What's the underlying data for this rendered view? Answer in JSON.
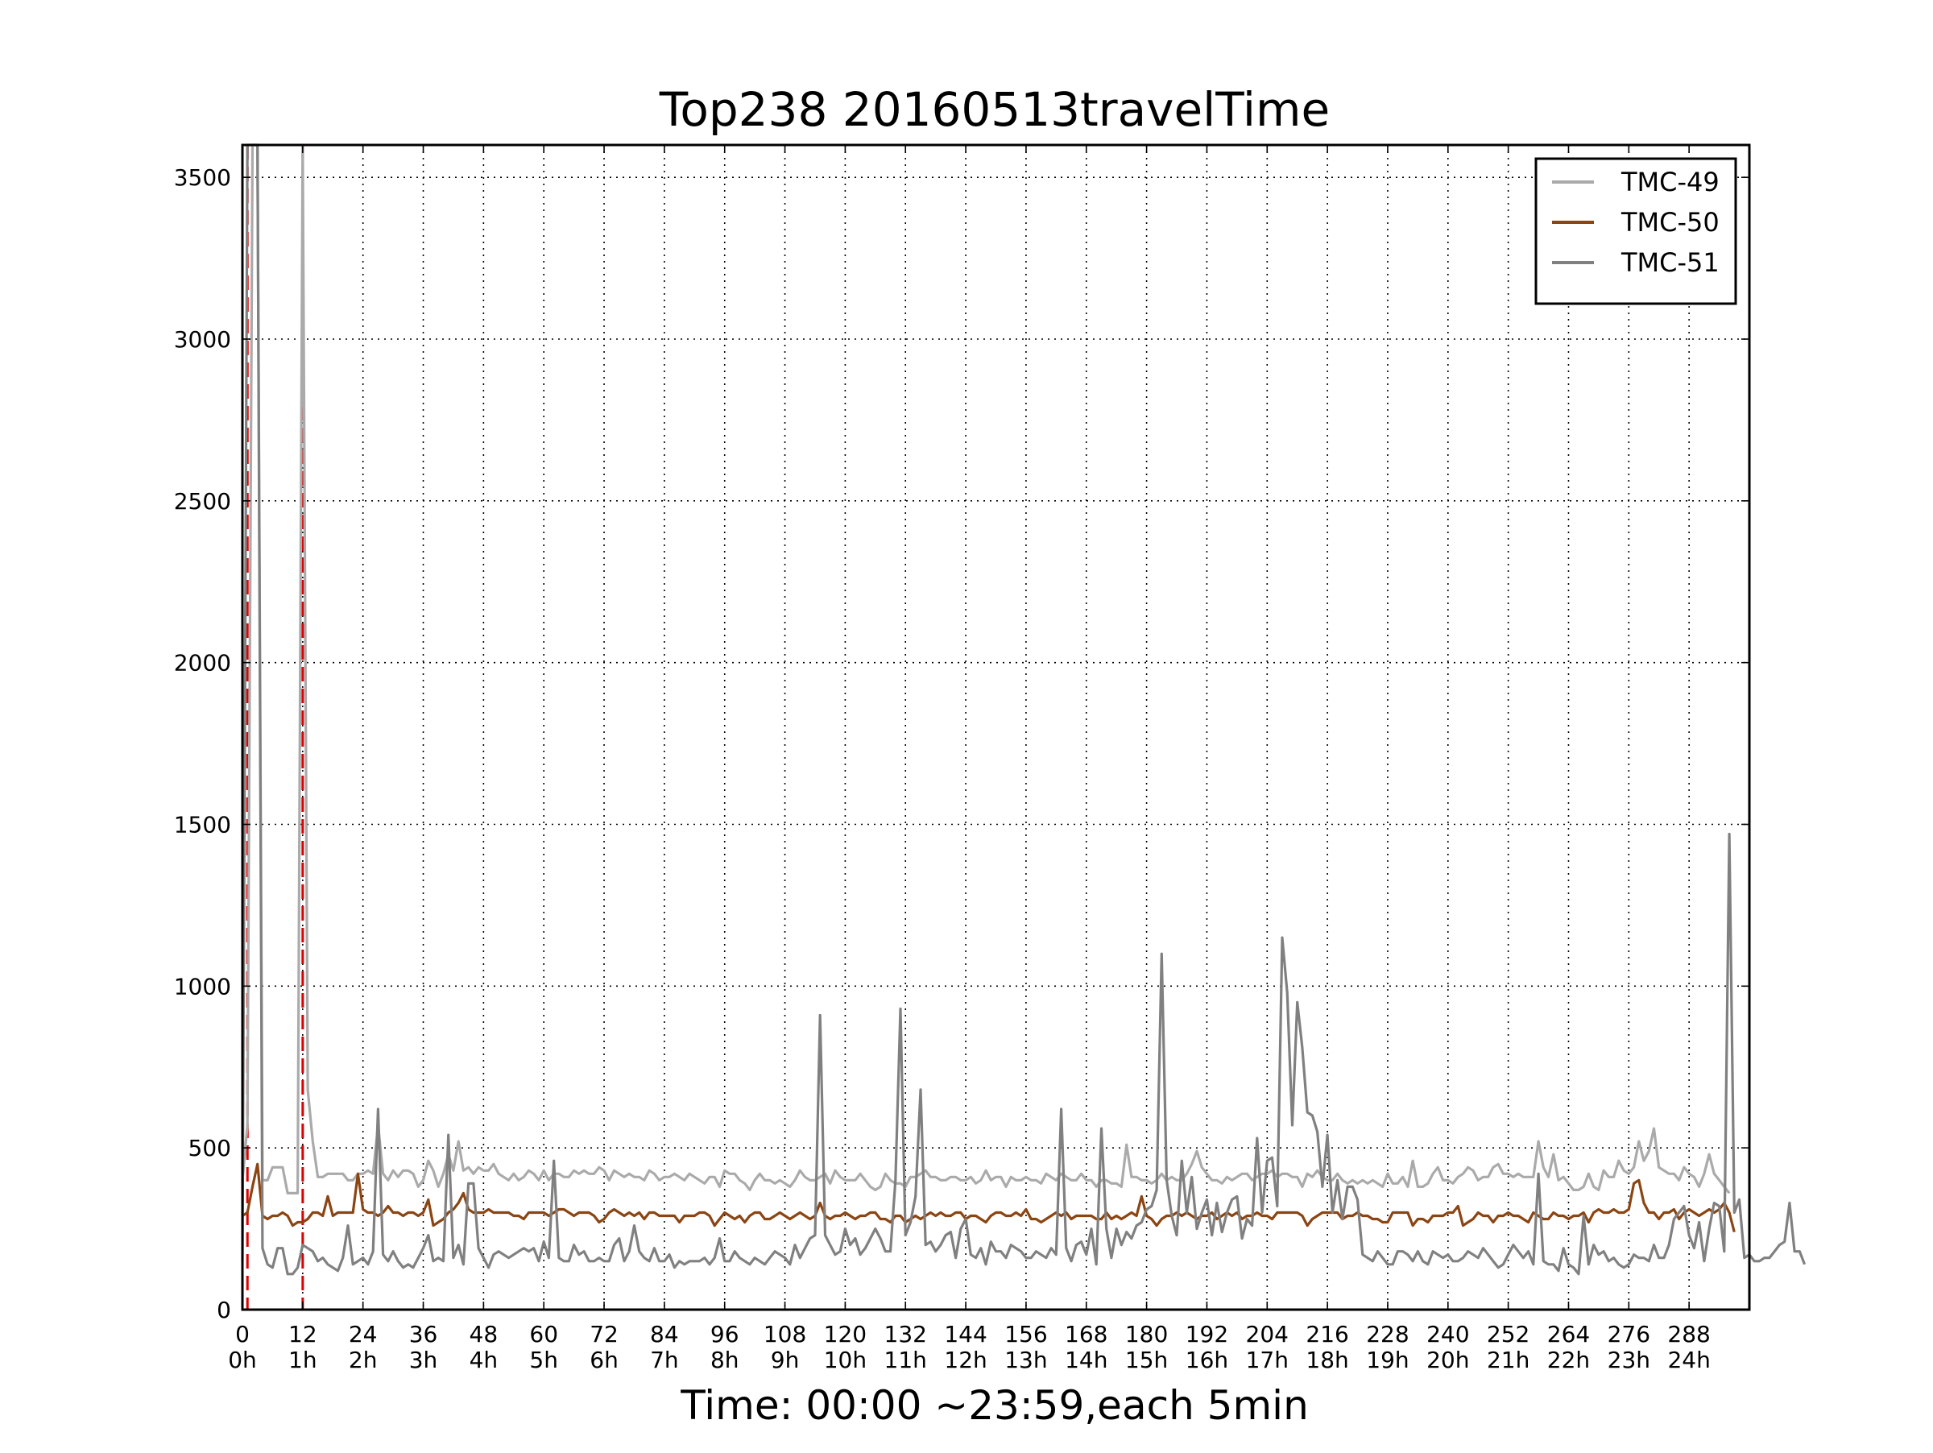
{
  "chart_data": {
    "type": "line",
    "title": "Top238 20160513travelTime",
    "xlabel": "Time: 00:00 ~23:59,each 5min",
    "ylabel": "",
    "xlim": [
      0,
      300
    ],
    "ylim": [
      0,
      3600
    ],
    "x_ticks": [
      0,
      12,
      24,
      36,
      48,
      60,
      72,
      84,
      96,
      108,
      120,
      132,
      144,
      156,
      168,
      180,
      192,
      204,
      216,
      228,
      240,
      252,
      264,
      276,
      288
    ],
    "x_tick_labels": [
      "0",
      "12",
      "24",
      "36",
      "48",
      "60",
      "72",
      "84",
      "96",
      "108",
      "120",
      "132",
      "144",
      "156",
      "168",
      "180",
      "192",
      "204",
      "216",
      "228",
      "240",
      "252",
      "264",
      "276",
      "288"
    ],
    "x_tick_sublabels": [
      "0h",
      "1h",
      "2h",
      "3h",
      "4h",
      "5h",
      "6h",
      "7h",
      "8h",
      "9h",
      "10h",
      "11h",
      "12h",
      "13h",
      "14h",
      "15h",
      "16h",
      "17h",
      "18h",
      "19h",
      "20h",
      "21h",
      "22h",
      "23h",
      "24h"
    ],
    "y_ticks": [
      0,
      500,
      1000,
      1500,
      2000,
      2500,
      3000,
      3500
    ],
    "y_tick_labels": [
      "0",
      "500",
      "1000",
      "1500",
      "2000",
      "2500",
      "3000",
      "3500"
    ],
    "grid": true,
    "legend_position": "top-right",
    "vertical_markers": [
      {
        "x": 1,
        "color": "#dd0000",
        "style": "dashed"
      },
      {
        "x": 12,
        "color": "#dd0000",
        "style": "dashed"
      }
    ],
    "series": [
      {
        "name": "TMC-49",
        "color": "#aaaaaa",
        "values": [
          400,
          570,
          3600,
          3600,
          400,
          400,
          440,
          440,
          440,
          360,
          360,
          360,
          3600,
          680,
          520,
          410,
          410,
          420,
          420,
          420,
          420,
          400,
          400,
          420,
          420,
          430,
          420,
          570,
          420,
          400,
          430,
          410,
          430,
          430,
          420,
          380,
          400,
          460,
          430,
          380,
          420,
          480,
          430,
          520,
          430,
          440,
          420,
          440,
          430,
          430,
          450,
          420,
          410,
          400,
          420,
          400,
          410,
          430,
          420,
          400,
          430,
          400,
          420,
          420,
          410,
          410,
          430,
          420,
          430,
          420,
          420,
          440,
          430,
          400,
          430,
          420,
          410,
          420,
          410,
          410,
          400,
          430,
          420,
          400,
          410,
          410,
          420,
          410,
          400,
          420,
          410,
          400,
          390,
          410,
          410,
          380,
          430,
          420,
          420,
          400,
          390,
          370,
          400,
          420,
          400,
          400,
          390,
          400,
          390,
          380,
          400,
          430,
          410,
          400,
          400,
          410,
          420,
          390,
          430,
          410,
          400,
          400,
          400,
          420,
          400,
          380,
          370,
          380,
          420,
          400,
          390,
          390,
          380,
          410,
          410,
          420,
          430,
          410,
          410,
          400,
          400,
          410,
          410,
          400,
          400,
          410,
          390,
          400,
          430,
          400,
          410,
          410,
          380,
          410,
          400,
          400,
          410,
          400,
          400,
          390,
          420,
          410,
          400,
          420,
          410,
          400,
          400,
          420,
          400,
          400,
          380,
          400,
          400,
          390,
          390,
          380,
          510,
          410,
          410,
          400,
          400,
          390,
          400,
          420,
          400,
          410,
          400,
          400,
          420,
          450,
          490,
          440,
          420,
          400,
          400,
          390,
          410,
          400,
          410,
          420,
          420,
          400,
          410,
          420,
          420,
          430,
          410,
          420,
          420,
          410,
          410,
          380,
          420,
          410,
          430,
          410,
          400,
          400,
          420,
          400,
          390,
          400,
          390,
          400,
          390,
          400,
          390,
          380,
          420,
          390,
          390,
          410,
          380,
          460,
          380,
          380,
          390,
          420,
          440,
          400,
          400,
          390,
          410,
          420,
          440,
          430,
          400,
          410,
          410,
          440,
          450,
          420,
          420,
          410,
          420,
          410,
          410,
          410,
          520,
          440,
          410,
          480,
          400,
          410,
          390,
          370,
          370,
          380,
          420,
          380,
          370,
          430,
          410,
          410,
          460,
          430,
          420,
          440,
          520,
          460,
          490,
          560,
          440,
          430,
          420,
          420,
          400,
          440,
          420,
          410,
          380,
          420,
          480,
          420,
          400,
          380,
          360
        ],
        "points": [
          {
            "x": 286,
            "y": 360
          }
        ]
      },
      {
        "name": "TMC-50",
        "color": "#8b4513",
        "values": [
          290,
          300,
          380,
          450,
          290,
          280,
          290,
          290,
          300,
          290,
          260,
          270,
          270,
          280,
          300,
          300,
          290,
          350,
          290,
          300,
          300,
          300,
          300,
          420,
          310,
          300,
          300,
          290,
          300,
          320,
          300,
          300,
          290,
          300,
          300,
          290,
          300,
          340,
          260,
          270,
          280,
          300,
          310,
          330,
          360,
          310,
          300,
          300,
          300,
          310,
          300,
          300,
          300,
          300,
          290,
          290,
          280,
          300,
          300,
          300,
          300,
          290,
          300,
          310,
          310,
          300,
          290,
          300,
          300,
          300,
          290,
          270,
          280,
          300,
          310,
          300,
          290,
          300,
          290,
          300,
          280,
          300,
          300,
          290,
          290,
          290,
          290,
          270,
          290,
          290,
          290,
          300,
          300,
          290,
          260,
          280,
          300,
          290,
          280,
          290,
          270,
          290,
          300,
          300,
          280,
          280,
          290,
          300,
          290,
          280,
          290,
          300,
          290,
          280,
          290,
          330,
          290,
          280,
          290,
          290,
          300,
          290,
          280,
          290,
          290,
          300,
          300,
          280,
          280,
          270,
          290,
          290,
          270,
          280,
          290,
          280,
          290,
          300,
          290,
          300,
          290,
          290,
          300,
          300,
          280,
          290,
          290,
          280,
          270,
          290,
          300,
          300,
          290,
          290,
          300,
          290,
          310,
          280,
          280,
          270,
          280,
          290,
          300,
          290,
          300,
          280,
          290,
          290,
          290,
          290,
          280,
          280,
          300,
          280,
          290,
          280,
          290,
          300,
          290,
          350,
          290,
          280,
          260,
          280,
          290,
          290,
          300,
          290,
          300,
          290,
          280,
          290,
          290,
          300,
          280,
          290,
          300,
          290,
          300,
          280,
          290,
          290,
          300,
          290,
          290,
          280,
          300,
          300,
          300,
          300,
          300,
          290,
          260,
          280,
          290,
          300,
          300,
          300,
          300,
          280,
          290,
          290,
          300,
          290,
          290,
          280,
          280,
          270,
          270,
          300,
          300,
          300,
          300,
          260,
          280,
          280,
          270,
          290,
          290,
          290,
          300,
          300,
          320,
          260,
          270,
          280,
          300,
          290,
          290,
          270,
          290,
          290,
          300,
          290,
          290,
          280,
          270,
          300,
          290,
          280,
          280,
          300,
          290,
          290,
          280,
          290,
          290,
          300,
          270,
          300,
          310,
          300,
          300,
          310,
          300,
          300,
          310,
          390,
          400,
          330,
          300,
          300,
          280,
          300,
          300,
          310,
          280,
          300,
          310,
          300,
          290,
          300,
          310,
          300,
          310,
          330,
          300,
          240
        ]
      },
      {
        "name": "TMC-51",
        "color": "#808080",
        "values": [
          150,
          3600,
          3600,
          3600,
          190,
          140,
          130,
          190,
          190,
          110,
          110,
          130,
          200,
          190,
          180,
          150,
          160,
          140,
          130,
          120,
          160,
          260,
          140,
          150,
          160,
          140,
          180,
          620,
          170,
          150,
          180,
          150,
          130,
          140,
          130,
          160,
          190,
          230,
          150,
          160,
          150,
          540,
          160,
          200,
          140,
          390,
          390,
          190,
          160,
          130,
          170,
          180,
          170,
          160,
          170,
          180,
          190,
          180,
          190,
          150,
          210,
          160,
          460,
          160,
          150,
          150,
          200,
          170,
          180,
          150,
          150,
          160,
          150,
          150,
          200,
          220,
          150,
          180,
          260,
          180,
          160,
          150,
          190,
          150,
          150,
          170,
          130,
          150,
          140,
          150,
          150,
          150,
          160,
          140,
          160,
          220,
          150,
          150,
          180,
          160,
          150,
          140,
          160,
          150,
          140,
          160,
          180,
          170,
          160,
          140,
          200,
          160,
          190,
          220,
          230,
          910,
          230,
          200,
          170,
          180,
          250,
          200,
          220,
          170,
          190,
          220,
          250,
          220,
          180,
          180,
          400,
          930,
          230,
          270,
          350,
          680,
          200,
          210,
          180,
          200,
          230,
          240,
          160,
          250,
          280,
          170,
          160,
          190,
          140,
          210,
          180,
          180,
          160,
          200,
          190,
          180,
          160,
          160,
          180,
          170,
          160,
          190,
          170,
          620,
          190,
          150,
          200,
          210,
          170,
          250,
          140,
          560,
          250,
          160,
          250,
          200,
          240,
          220,
          260,
          270,
          310,
          320,
          370,
          1100,
          400,
          290,
          230,
          460,
          300,
          410,
          250,
          300,
          340,
          230,
          330,
          240,
          300,
          340,
          350,
          220,
          280,
          260,
          530,
          300,
          460,
          470,
          320,
          1150,
          980,
          570,
          950,
          810,
          610,
          600,
          550,
          380,
          540,
          300,
          400,
          280,
          380,
          380,
          340,
          170,
          160,
          150,
          180,
          160,
          140,
          140,
          180,
          180,
          170,
          150,
          180,
          150,
          140,
          180,
          170,
          160,
          170,
          150,
          150,
          160,
          180,
          170,
          160,
          190,
          170,
          150,
          130,
          140,
          170,
          200,
          180,
          160,
          180,
          140,
          420,
          150,
          140,
          140,
          120,
          190,
          140,
          130,
          110,
          290,
          140,
          200,
          170,
          180,
          150,
          160,
          140,
          130,
          140,
          170,
          160,
          160,
          150,
          200,
          160,
          160,
          200,
          280,
          300,
          320,
          230,
          190,
          270,
          150,
          250,
          330,
          320,
          180,
          1470,
          300,
          340,
          160,
          170,
          150,
          150,
          160,
          160,
          180,
          200,
          210,
          330,
          180,
          180,
          140
        ]
      }
    ]
  }
}
